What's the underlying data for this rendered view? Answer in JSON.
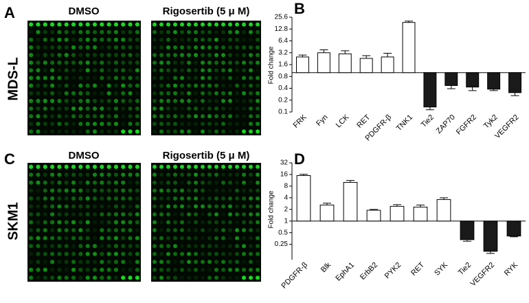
{
  "figure": {
    "labels": [
      "A",
      "B",
      "C",
      "D"
    ],
    "column_titles": [
      "DMSO",
      "Rigosertib (5 μ M)"
    ],
    "row_titles": [
      "MDS-L",
      "SKM1"
    ]
  },
  "chart_data": [
    {
      "type": "bar",
      "ylabel": "Fold change",
      "log_scale": true,
      "baseline": 1,
      "categories": [
        "FRK",
        "Fyn",
        "LCK",
        "RET",
        "PDGFR-β",
        "TNK1",
        "Tie2",
        "ZAP70",
        "FGFR2",
        "Tyk2",
        "VEGFR2"
      ],
      "values": [
        2.5,
        3.2,
        3.0,
        2.3,
        2.5,
        18.8,
        0.134,
        0.47,
        0.43,
        0.38,
        0.31
      ],
      "errors": [
        0.3,
        0.6,
        0.6,
        0.4,
        0.6,
        1.5,
        0.02,
        0.08,
        0.08,
        0.03,
        0.05
      ],
      "colors": [
        "#ffffff",
        "#ffffff",
        "#ffffff",
        "#ffffff",
        "#ffffff",
        "#ffffff",
        "#1a1a1a",
        "#1a1a1a",
        "#1a1a1a",
        "#1a1a1a",
        "#1a1a1a"
      ],
      "ylim": [
        0.1,
        25.6
      ],
      "yticks": [
        0.1,
        0.2,
        0.4,
        0.8,
        1.6,
        3.2,
        6.4,
        12.8,
        25.6
      ]
    },
    {
      "type": "bar",
      "ylabel": "Fold change",
      "log_scale": true,
      "baseline": 1,
      "categories": [
        "PDGFR-β",
        "Blk",
        "EphA1",
        "ErbB2",
        "PYK2",
        "RET",
        "SYK",
        "Tie2",
        "VEGFR2",
        "RYK"
      ],
      "values": [
        15,
        2.6,
        10,
        1.9,
        2.4,
        2.3,
        3.6,
        0.33,
        0.165,
        0.41
      ],
      "errors": [
        1.2,
        0.3,
        1.2,
        0.1,
        0.25,
        0.3,
        0.4,
        0.03,
        0.02,
        0.02
      ],
      "colors": [
        "#ffffff",
        "#ffffff",
        "#ffffff",
        "#ffffff",
        "#ffffff",
        "#ffffff",
        "#ffffff",
        "#1a1a1a",
        "#1a1a1a",
        "#1a1a1a"
      ],
      "ylim": [
        0.1,
        32
      ],
      "yticks": [
        0.25,
        0.5,
        1,
        2,
        4,
        8,
        16,
        32
      ]
    }
  ]
}
